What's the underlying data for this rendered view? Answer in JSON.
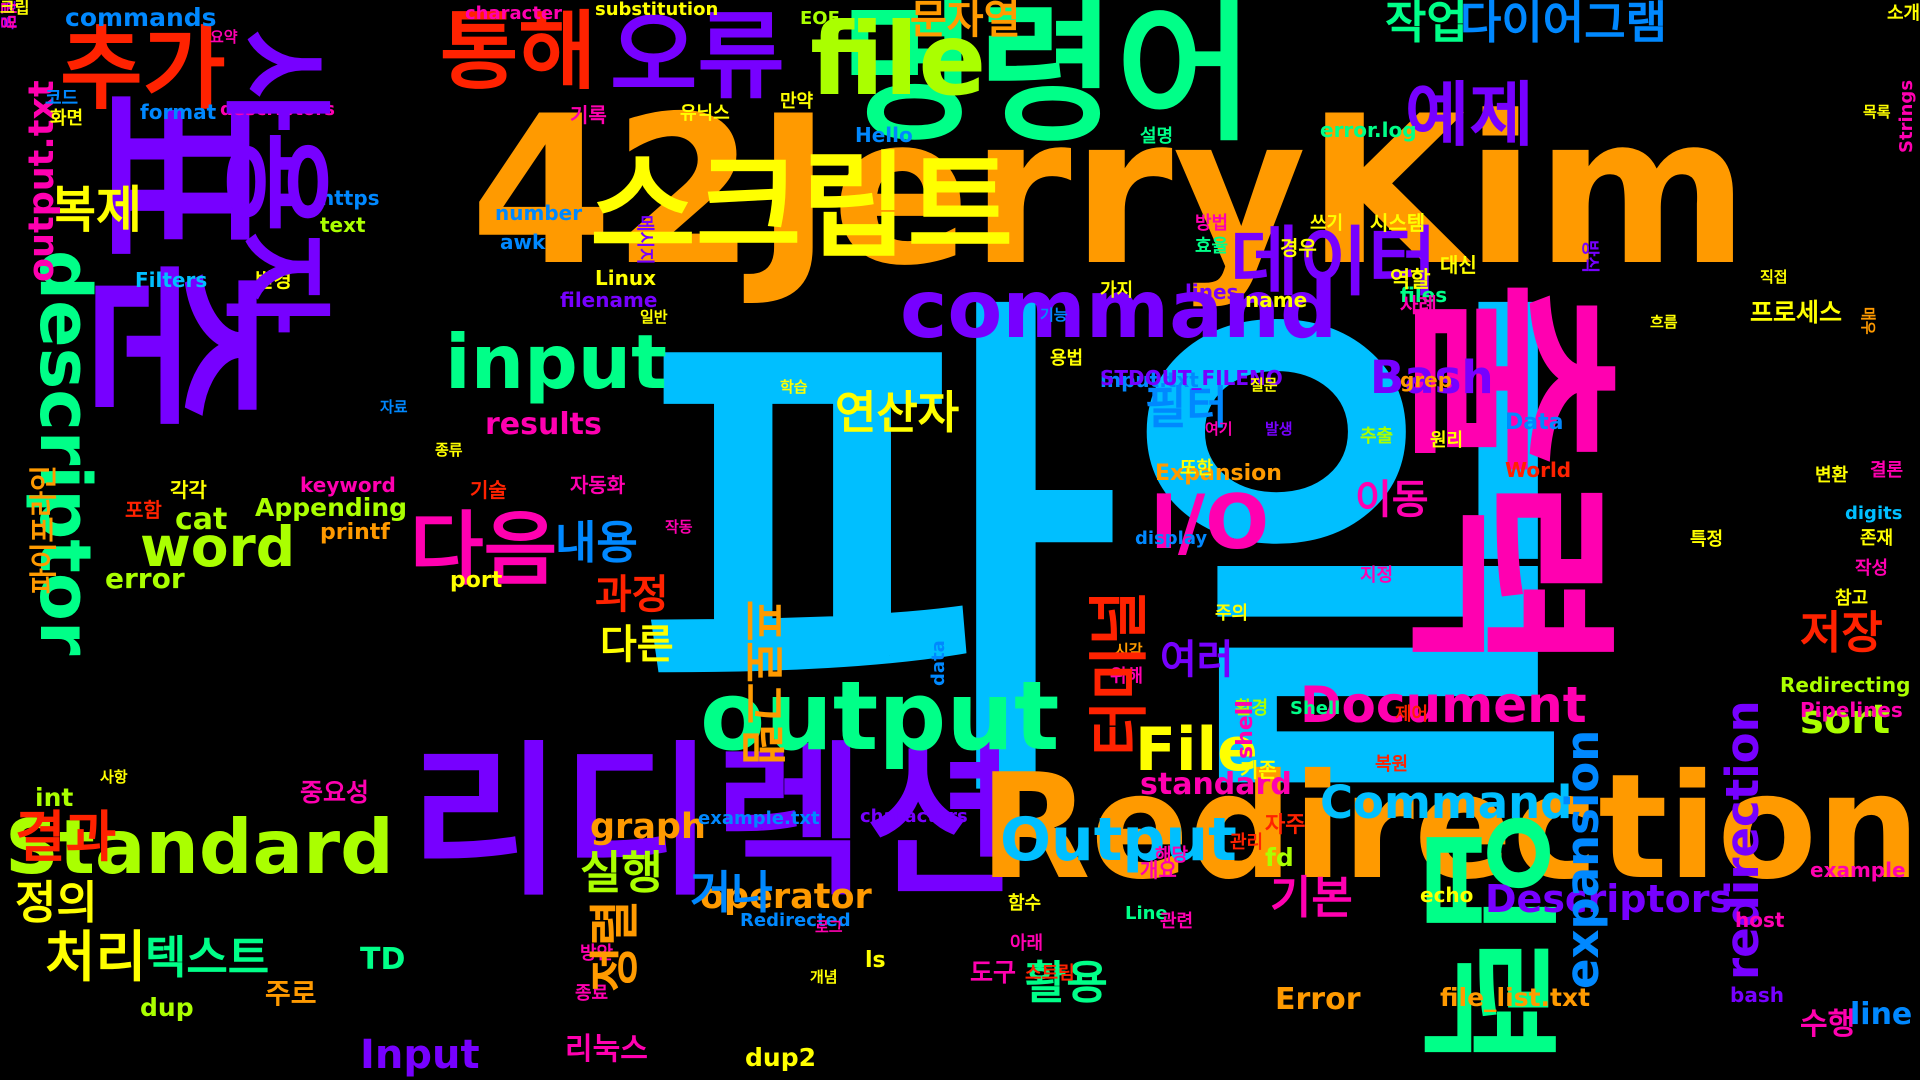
{
  "word_cloud": {
    "words": [
      {
        "text": "파일",
        "color": "#00bfff",
        "rotate": 0
      },
      {
        "text": "42JerryKim",
        "color": "#ff9a00",
        "rotate": 0
      },
      {
        "text": "표준",
        "color": "#7700ff",
        "rotate": 90
      },
      {
        "text": "출력",
        "color": "#ff00b0",
        "rotate": 90
      },
      {
        "text": "명령어",
        "color": "#00ff88",
        "rotate": 0
      },
      {
        "text": "리디렉션",
        "color": "#7700ff",
        "rotate": 0
      },
      {
        "text": "Redirection",
        "color": "#ff9a00",
        "rotate": 0
      },
      {
        "text": "스크립트",
        "color": "#ffff00",
        "rotate": 0
      },
      {
        "text": "오류",
        "color": "#7700ff",
        "rotate": 0
      },
      {
        "text": "file",
        "color": "#aaff00",
        "rotate": 0
      },
      {
        "text": "통해",
        "color": "#ff2200",
        "rotate": 0
      },
      {
        "text": "추가",
        "color": "#ff2200",
        "rotate": 0
      },
      {
        "text": "command",
        "color": "#7700ff",
        "rotate": 0
      },
      {
        "text": "output",
        "color": "#00ff88",
        "rotate": 0
      },
      {
        "text": "descriptor",
        "color": "#00ff88",
        "rotate": 90
      },
      {
        "text": "input",
        "color": "#00ff88",
        "rotate": 0
      },
      {
        "text": "데이터",
        "color": "#7700ff",
        "rotate": 0
      },
      {
        "text": "입력",
        "color": "#00ff88",
        "rotate": 90
      },
      {
        "text": "다이어그램",
        "color": "#0088ff",
        "rotate": 0
      },
      {
        "text": "예제",
        "color": "#7700ff",
        "rotate": 0
      },
      {
        "text": "작업",
        "color": "#00ff88",
        "rotate": 0
      },
      {
        "text": "문자열",
        "color": "#ff9a00",
        "rotate": 0
      },
      {
        "text": "Standard",
        "color": "#aaff00",
        "rotate": 0
      },
      {
        "text": "Output",
        "color": "#00bfff",
        "rotate": 0
      },
      {
        "text": "File",
        "color": "#ffff00",
        "rotate": 0
      },
      {
        "text": "Document",
        "color": "#ff00b0",
        "rotate": 0
      },
      {
        "text": "Command",
        "color": "#00bfff",
        "rotate": 0
      },
      {
        "text": "Bash",
        "color": "#7700ff",
        "rotate": 0
      },
      {
        "text": "I/O",
        "color": "#ff00b0",
        "rotate": 0
      },
      {
        "text": "다음",
        "color": "#ff00b0",
        "rotate": 0
      },
      {
        "text": "word",
        "color": "#aaff00",
        "rotate": 0
      },
      {
        "text": "처리",
        "color": "#ffff00",
        "rotate": 0
      },
      {
        "text": "결과",
        "color": "#ff2200",
        "rotate": 0
      },
      {
        "text": "복제",
        "color": "#ffff00",
        "rotate": 0
      },
      {
        "text": "필터",
        "color": "#0088ff",
        "rotate": 0
      },
      {
        "text": "연산자",
        "color": "#ffff00",
        "rotate": 0
      },
      {
        "text": "내용",
        "color": "#0088ff",
        "rotate": 0
      },
      {
        "text": "이동",
        "color": "#ff00b0",
        "rotate": 0
      },
      {
        "text": "여러",
        "color": "#7700ff",
        "rotate": 0
      },
      {
        "text": "저장",
        "color": "#ff2200",
        "rotate": 0
      },
      {
        "text": "sort",
        "color": "#aaff00",
        "rotate": 0
      },
      {
        "text": "실행",
        "color": "#aaff00",
        "rotate": 0
      },
      {
        "text": "다른",
        "color": "#ffff00",
        "rotate": 0
      },
      {
        "text": "과정",
        "color": "#ff2200",
        "rotate": 0
      },
      {
        "text": "기본",
        "color": "#ff00b0",
        "rotate": 0
      },
      {
        "text": "활용",
        "color": "#00ff88",
        "rotate": 0
      },
      {
        "text": "텍스트",
        "color": "#00ff88",
        "rotate": 0
      },
      {
        "text": "정의",
        "color": "#ffff00",
        "rotate": 0
      },
      {
        "text": "Descriptors",
        "color": "#7700ff",
        "rotate": 0
      },
      {
        "text": "operator",
        "color": "#ff9a00",
        "rotate": 0
      },
      {
        "text": "graph",
        "color": "#ff9a00",
        "rotate": 0
      },
      {
        "text": "results",
        "color": "#ff00b0",
        "rotate": 0
      },
      {
        "text": "standard",
        "color": "#ff00b0",
        "rotate": 0
      },
      {
        "text": "expansion",
        "color": "#0088ff",
        "rotate": 270
      },
      {
        "text": "redirection",
        "color": "#7700ff",
        "rotate": 270
      },
      {
        "text": "Input",
        "color": "#7700ff",
        "rotate": 0
      },
      {
        "text": "Error",
        "color": "#ff9a00",
        "rotate": 0
      },
      {
        "text": "수행",
        "color": "#ff00b0",
        "rotate": 0
      },
      {
        "text": "line",
        "color": "#0088ff",
        "rotate": 0
      },
      {
        "text": "프로세스",
        "color": "#ffff00",
        "rotate": 0
      },
      {
        "text": "cat",
        "color": "#aaff00",
        "rotate": 0
      },
      {
        "text": "error",
        "color": "#aaff00",
        "rotate": 0
      },
      {
        "text": "TD",
        "color": "#00ff88",
        "rotate": 0
      },
      {
        "text": "주로",
        "color": "#ff9a00",
        "rotate": 0
      },
      {
        "text": "dup",
        "color": "#aaff00",
        "rotate": 0
      },
      {
        "text": "int",
        "color": "#aaff00",
        "rotate": 0
      },
      {
        "text": "리눅스",
        "color": "#ff00b0",
        "rotate": 0
      },
      {
        "text": "dup2",
        "color": "#ffff00",
        "rotate": 0
      },
      {
        "text": "file_list.txt",
        "color": "#ff9a00",
        "rotate": 0
      },
      {
        "text": "도구",
        "color": "#ff00b0",
        "rotate": 0
      },
      {
        "text": "fd",
        "color": "#aaff00",
        "rotate": 0
      },
      {
        "text": "자주",
        "color": "#ff2200",
        "rotate": 0
      },
      {
        "text": "기존",
        "color": "#ffff00",
        "rotate": 0
      },
      {
        "text": "환경",
        "color": "#aaff00",
        "rotate": 0
      },
      {
        "text": "Appending",
        "color": "#aaff00",
        "rotate": 0
      },
      {
        "text": "printf",
        "color": "#ff9a00",
        "rotate": 0
      },
      {
        "text": "keyword",
        "color": "#ff00b0",
        "rotate": 0
      },
      {
        "text": "포함",
        "color": "#ff2200",
        "rotate": 0
      },
      {
        "text": "각각",
        "color": "#ffff00",
        "rotate": 0
      },
      {
        "text": "기술",
        "color": "#ff2200",
        "rotate": 0
      },
      {
        "text": "자동화",
        "color": "#ff00b0",
        "rotate": 0
      },
      {
        "text": "Linux",
        "color": "#ffff00",
        "rotate": 0
      },
      {
        "text": "filename",
        "color": "#7700ff",
        "rotate": 0
      },
      {
        "text": "변경",
        "color": "#ffff00",
        "rotate": 0
      },
      {
        "text": "Filters",
        "color": "#00bfff",
        "rotate": 0
      },
      {
        "text": "text",
        "color": "#aaff00",
        "rotate": 0
      },
      {
        "text": "https",
        "color": "#0088ff",
        "rotate": 0
      },
      {
        "text": "awk",
        "color": "#0088ff",
        "rotate": 0
      },
      {
        "text": "number",
        "color": "#0088ff",
        "rotate": 0
      },
      {
        "text": "format",
        "color": "#0088ff",
        "rotate": 0
      },
      {
        "text": "descriptors",
        "color": "#ff00b0",
        "rotate": 0
      },
      {
        "text": "commands",
        "color": "#0088ff",
        "rotate": 0
      },
      {
        "text": "character",
        "color": "#ff00b0",
        "rotate": 0
      },
      {
        "text": "substitution",
        "color": "#ffff00",
        "rotate": 0
      },
      {
        "text": "EOF",
        "color": "#aaff00",
        "rotate": 0
      },
      {
        "text": "Hello",
        "color": "#0088ff",
        "rotate": 0
      },
      {
        "text": "error.log",
        "color": "#00ff88",
        "rotate": 0
      },
      {
        "text": "input.txt",
        "color": "#0088ff",
        "rotate": 0
      },
      {
        "text": "STDOUT_FILENO",
        "color": "#7700ff",
        "rotate": 0
      },
      {
        "text": "name",
        "color": "#ffff00",
        "rotate": 0
      },
      {
        "text": "lines",
        "color": "#7700ff",
        "rotate": 0
      },
      {
        "text": "files",
        "color": "#00ff88",
        "rotate": 0
      },
      {
        "text": "grep",
        "color": "#ff9a00",
        "rotate": 0
      },
      {
        "text": "Data",
        "color": "#0088ff",
        "rotate": 0
      },
      {
        "text": "World",
        "color": "#ff2200",
        "rotate": 0
      },
      {
        "text": "Expansion",
        "color": "#ff9a00",
        "rotate": 0
      },
      {
        "text": "display",
        "color": "#0088ff",
        "rotate": 0
      },
      {
        "text": "data",
        "color": "#0088ff",
        "rotate": 270
      },
      {
        "text": "Redirecting",
        "color": "#aaff00",
        "rotate": 0
      },
      {
        "text": "Pipelines",
        "color": "#ff00b0",
        "rotate": 0
      },
      {
        "text": "Shell",
        "color": "#00ff88",
        "rotate": 0
      },
      {
        "text": "shell",
        "color": "#ff00b0",
        "rotate": 270
      },
      {
        "text": "Line",
        "color": "#00ff88",
        "rotate": 0
      },
      {
        "text": "characters",
        "color": "#7700ff",
        "rotate": 0
      },
      {
        "text": "example.txt",
        "color": "#0088ff",
        "rotate": 0
      },
      {
        "text": "Redirected",
        "color": "#0088ff",
        "rotate": 0
      },
      {
        "text": "echo",
        "color": "#ffff00",
        "rotate": 0
      },
      {
        "text": "example",
        "color": "#ff00b0",
        "rotate": 0
      },
      {
        "text": "host",
        "color": "#ff00b0",
        "rotate": 0
      },
      {
        "text": "bash",
        "color": "#7700ff",
        "rotate": 0
      },
      {
        "text": "digits",
        "color": "#00bfff",
        "rotate": 0
      },
      {
        "text": "Strings",
        "color": "#ff00b0",
        "rotate": 270
      },
      {
        "text": "port",
        "color": "#ffff00",
        "rotate": 0
      },
      {
        "text": "ls",
        "color": "#ffff00",
        "rotate": 0
      },
      {
        "text": "output.txt",
        "color": "#ff00b0",
        "rotate": 270
      },
      {
        "text": "파이프라인",
        "color": "#ff9a00",
        "rotate": 270
      },
      {
        "text": "코드",
        "color": "#0088ff",
        "rotate": 0
      },
      {
        "text": "화면",
        "color": "#ffff00",
        "rotate": 0
      },
      {
        "text": "요약",
        "color": "#ff00b0",
        "rotate": 0
      },
      {
        "text": "기록",
        "color": "#ff00b0",
        "rotate": 0
      },
      {
        "text": "유닉스",
        "color": "#ffff00",
        "rotate": 0
      },
      {
        "text": "만약",
        "color": "#ffff00",
        "rotate": 0
      },
      {
        "text": "메시지",
        "color": "#7700ff",
        "rotate": 90
      },
      {
        "text": "설명",
        "color": "#00ff88",
        "rotate": 0
      },
      {
        "text": "방법",
        "color": "#ff00b0",
        "rotate": 0
      },
      {
        "text": "효율",
        "color": "#00ff88",
        "rotate": 0
      },
      {
        "text": "경우",
        "color": "#ffff00",
        "rotate": 0
      },
      {
        "text": "쓰기",
        "color": "#ffff00",
        "rotate": 0
      },
      {
        "text": "시스템",
        "color": "#ffff00",
        "rotate": 0
      },
      {
        "text": "역할",
        "color": "#ffff00",
        "rotate": 0
      },
      {
        "text": "가지",
        "color": "#ffff00",
        "rotate": 0
      },
      {
        "text": "기능",
        "color": "#0088ff",
        "rotate": 0
      },
      {
        "text": "흐름",
        "color": "#ffff00",
        "rotate": 0
      },
      {
        "text": "일반",
        "color": "#ffff00",
        "rotate": 0
      },
      {
        "text": "용법",
        "color": "#ffff00",
        "rotate": 0
      },
      {
        "text": "사례",
        "color": "#ff00b0",
        "rotate": 0
      },
      {
        "text": "대신",
        "color": "#ffff00",
        "rotate": 0
      },
      {
        "text": "방식",
        "color": "#7700ff",
        "rotate": 90
      },
      {
        "text": "매우",
        "color": "#ff9a00",
        "rotate": 90
      },
      {
        "text": "직접",
        "color": "#ffff00",
        "rotate": 0
      },
      {
        "text": "목록",
        "color": "#ffff00",
        "rotate": 0
      },
      {
        "text": "소개",
        "color": "#ffff00",
        "rotate": 0
      },
      {
        "text": "결론",
        "color": "#ff00b0",
        "rotate": 0
      },
      {
        "text": "변환",
        "color": "#ffff00",
        "rotate": 0
      },
      {
        "text": "존재",
        "color": "#ffff00",
        "rotate": 0
      },
      {
        "text": "작성",
        "color": "#ff00b0",
        "rotate": 0
      },
      {
        "text": "참고",
        "color": "#ffff00",
        "rotate": 0
      },
      {
        "text": "특정",
        "color": "#ffff00",
        "rotate": 0
      },
      {
        "text": "원리",
        "color": "#ffff00",
        "rotate": 0
      },
      {
        "text": "추출",
        "color": "#aaff00",
        "rotate": 0
      },
      {
        "text": "발생",
        "color": "#7700ff",
        "rotate": 0
      },
      {
        "text": "여기",
        "color": "#ff00b0",
        "rotate": 0
      },
      {
        "text": "질문",
        "color": "#ffff00",
        "rotate": 0
      },
      {
        "text": "또한",
        "color": "#ffff00",
        "rotate": 0
      },
      {
        "text": "지정",
        "color": "#ff00b0",
        "rotate": 0
      },
      {
        "text": "주의",
        "color": "#ffff00",
        "rotate": 0
      },
      {
        "text": "시각",
        "color": "#ff9a00",
        "rotate": 0
      },
      {
        "text": "위해",
        "color": "#ff00b0",
        "rotate": 0
      },
      {
        "text": "제어",
        "color": "#ff2200",
        "rotate": 0
      },
      {
        "text": "복원",
        "color": "#ff2200",
        "rotate": 0
      },
      {
        "text": "관리",
        "color": "#ff2200",
        "rotate": 0
      },
      {
        "text": "해당",
        "color": "#ff00b0",
        "rotate": 0
      },
      {
        "text": "관련",
        "color": "#ff00b0",
        "rotate": 0
      },
      {
        "text": "함수",
        "color": "#ffff00",
        "rotate": 0
      },
      {
        "text": "아래",
        "color": "#ff00b0",
        "rotate": 0
      },
      {
        "text": "스트림",
        "color": "#ff2200",
        "rotate": 0
      },
      {
        "text": "방안",
        "color": "#ff00b0",
        "rotate": 0
      },
      {
        "text": "개념",
        "color": "#ffff00",
        "rotate": 0
      },
      {
        "text": "로그",
        "color": "#ff00b0",
        "rotate": 0
      },
      {
        "text": "종료",
        "color": "#ff00b0",
        "rotate": 0
      },
      {
        "text": "작동",
        "color": "#ff00b0",
        "rotate": 0
      },
      {
        "text": "종류",
        "color": "#ffff00",
        "rotate": 0
      },
      {
        "text": "자료",
        "color": "#0088ff",
        "rotate": 0
      },
      {
        "text": "학습",
        "color": "#ffff00",
        "rotate": 0
      },
      {
        "text": "사항",
        "color": "#ffff00",
        "rotate": 0
      },
      {
        "text": "중요성",
        "color": "#ff00b0",
        "rotate": 0
      },
      {
        "text": "개요",
        "color": "#ff00b0",
        "rotate": 0
      },
      {
        "text": "터미널",
        "color": "#ff2200",
        "rotate": 270
      },
      {
        "text": "정렬",
        "color": "#ff9a00",
        "rotate": 270
      },
      {
        "text": "거나",
        "color": "#0088ff",
        "rotate": 0
      },
      {
        "text": "프로그램",
        "color": "#ff9a00",
        "rotate": 90
      },
      {
        "text": "사용자",
        "color": "#7700ff",
        "rotate": 90
      },
      {
        "text": "전달",
        "color": "#7700ff",
        "rotate": 90
      },
      {
        "text": "설명",
        "color": "#ff00b0",
        "rotate": 90
      },
      {
        "text": "크립",
        "color": "#ffff00",
        "rotate": 0
      }
    ]
  }
}
